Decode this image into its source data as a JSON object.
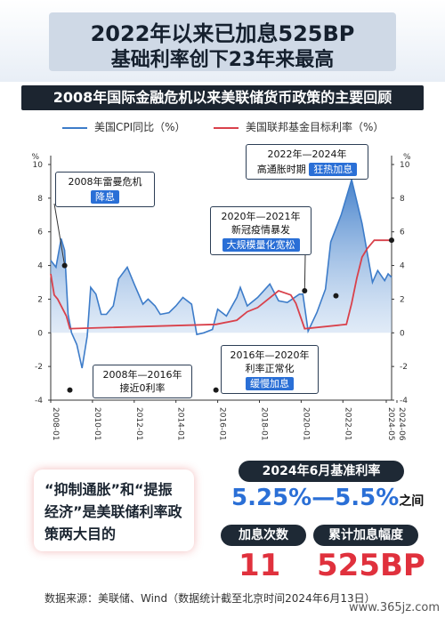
{
  "header": {
    "title_line1": "2022年以来已加息525BP",
    "title_line2": "基础利率创下23年来最高"
  },
  "subtitle": "2008年国际金融危机以来美联储货币政策的主要回顾",
  "legend": {
    "cpi": "美国CPI同比（%）",
    "rate": "美国联邦基金目标利率（%）"
  },
  "annotations": [
    {
      "lines": [
        "2008年雷曼危机"
      ],
      "tag": "降息"
    },
    {
      "lines": [
        "2008年—2016年",
        "接近0利率"
      ],
      "tag": ""
    },
    {
      "lines": [
        "2020年—2021年",
        "新冠疫情暴发"
      ],
      "tag": "大规模量化宽松"
    },
    {
      "lines": [
        "2016年—2020年",
        "利率正常化"
      ],
      "tag": "缓慢加息"
    },
    {
      "lines": [
        "2022年—2024年",
        "高通胀时期"
      ],
      "tag": "狂热加息"
    }
  ],
  "chart_data": {
    "type": "line",
    "x_range": [
      "2008-01",
      "2024-05"
    ],
    "xtick_labels": [
      "2008-01",
      "2010-01",
      "2012-01",
      "2014-01",
      "2016-01",
      "2018-01",
      "2020-01",
      "2022-01",
      "2024-06",
      "2024-05"
    ],
    "ylim": [
      -4,
      10
    ],
    "yticks": [
      -4,
      -2,
      0,
      2,
      4,
      6,
      8,
      10
    ],
    "y_axis_unit_left": "%",
    "y_axis_unit_right": "%",
    "series": [
      {
        "name": "美国CPI同比（%）",
        "color": "#3d7cc9",
        "style": "filled-area",
        "points": [
          [
            "2008-01",
            4.3
          ],
          [
            "2008-04",
            3.9
          ],
          [
            "2008-07",
            5.6
          ],
          [
            "2008-09",
            4.9
          ],
          [
            "2008-11",
            1.1
          ],
          [
            "2009-01",
            0.0
          ],
          [
            "2009-04",
            -0.7
          ],
          [
            "2009-07",
            -2.1
          ],
          [
            "2009-10",
            -0.2
          ],
          [
            "2009-12",
            2.7
          ],
          [
            "2010-03",
            2.3
          ],
          [
            "2010-06",
            1.1
          ],
          [
            "2010-09",
            1.1
          ],
          [
            "2011-01",
            1.6
          ],
          [
            "2011-04",
            3.2
          ],
          [
            "2011-09",
            3.9
          ],
          [
            "2012-01",
            2.9
          ],
          [
            "2012-06",
            1.7
          ],
          [
            "2012-09",
            2.0
          ],
          [
            "2013-01",
            1.6
          ],
          [
            "2013-04",
            1.1
          ],
          [
            "2013-09",
            1.2
          ],
          [
            "2014-01",
            1.6
          ],
          [
            "2014-05",
            2.1
          ],
          [
            "2014-10",
            1.7
          ],
          [
            "2015-01",
            -0.1
          ],
          [
            "2015-05",
            0.0
          ],
          [
            "2015-10",
            0.2
          ],
          [
            "2016-01",
            1.4
          ],
          [
            "2016-06",
            1.0
          ],
          [
            "2016-12",
            2.1
          ],
          [
            "2017-02",
            2.7
          ],
          [
            "2017-06",
            1.6
          ],
          [
            "2017-12",
            2.1
          ],
          [
            "2018-07",
            2.9
          ],
          [
            "2018-12",
            1.9
          ],
          [
            "2019-05",
            1.8
          ],
          [
            "2019-12",
            2.3
          ],
          [
            "2020-02",
            2.3
          ],
          [
            "2020-05",
            0.1
          ],
          [
            "2020-10",
            1.2
          ],
          [
            "2021-03",
            2.6
          ],
          [
            "2021-06",
            5.4
          ],
          [
            "2021-12",
            7.0
          ],
          [
            "2022-06",
            9.1
          ],
          [
            "2022-12",
            6.5
          ],
          [
            "2023-06",
            3.0
          ],
          [
            "2023-09",
            3.7
          ],
          [
            "2024-01",
            3.1
          ],
          [
            "2024-03",
            3.5
          ],
          [
            "2024-05",
            3.3
          ]
        ]
      },
      {
        "name": "美国联邦基金目标利率（%）",
        "color": "#d9414b",
        "style": "line",
        "points": [
          [
            "2008-01",
            3.5
          ],
          [
            "2008-03",
            2.25
          ],
          [
            "2008-05",
            2.0
          ],
          [
            "2008-10",
            1.0
          ],
          [
            "2008-12",
            0.25
          ],
          [
            "2015-12",
            0.5
          ],
          [
            "2016-12",
            0.75
          ],
          [
            "2017-06",
            1.25
          ],
          [
            "2017-12",
            1.5
          ],
          [
            "2018-06",
            2.0
          ],
          [
            "2018-12",
            2.5
          ],
          [
            "2019-07",
            2.25
          ],
          [
            "2019-10",
            1.75
          ],
          [
            "2020-03",
            0.25
          ],
          [
            "2022-03",
            0.5
          ],
          [
            "2022-06",
            1.75
          ],
          [
            "2022-09",
            3.25
          ],
          [
            "2022-12",
            4.5
          ],
          [
            "2023-03",
            5.0
          ],
          [
            "2023-07",
            5.5
          ],
          [
            "2024-05",
            5.5
          ]
        ]
      }
    ]
  },
  "info": {
    "benchmark_label": "2024年6月基准利率",
    "rate_range": "5.25%—5.5%",
    "rate_suffix": "之间",
    "hike_count_label": "加息次数",
    "hike_count_value": "11",
    "total_hike_label": "累计加息幅度",
    "total_hike_value": "525BP"
  },
  "bubble_text": "“抑制通胀”和“提振经济”是美联储利率政策两大目的",
  "source": "数据来源：美联储、Wind（数据统计截至北京时间2024年6月13日）",
  "watermark": "www.365jz.com",
  "colors": {
    "accent_blue": "#2a6fd6",
    "accent_red": "#e0313d",
    "dark": "#1e2935"
  }
}
